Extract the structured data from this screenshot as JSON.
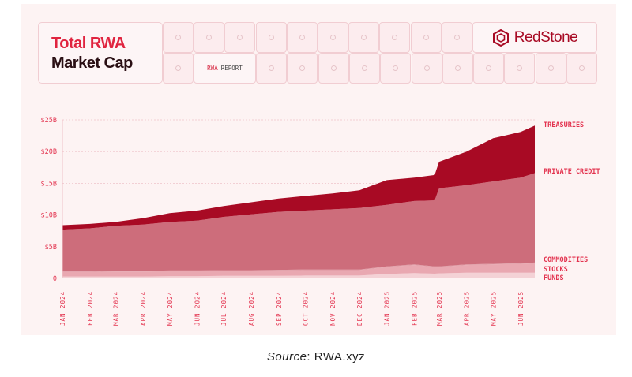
{
  "header": {
    "title_line1": "Total RWA",
    "title_line2": "Market Cap",
    "report_part1": "RWA",
    "report_part2": "REPORT",
    "brand": "RedStone"
  },
  "source": {
    "label": "Source",
    "value": ": RWA.xyz"
  },
  "colors": {
    "treasuries": "#a80a24",
    "private_credit": "#cd6d7b",
    "commodities": "#de98a2",
    "stocks": "#e9a8b1",
    "funds": "#f4d2d6",
    "labels": "#e3334f"
  },
  "chart_data": {
    "type": "area",
    "stacked": true,
    "title": "Total RWA Market Cap",
    "xlabel": "",
    "ylabel": "",
    "ylim": [
      0,
      25
    ],
    "y_ticks": [
      "0",
      "$5B",
      "$10B",
      "$15B",
      "$20B",
      "$25B"
    ],
    "y_tick_values": [
      0,
      5,
      10,
      15,
      20,
      25
    ],
    "grid": true,
    "legend": "right, aligned to series ends",
    "x_ticks": [
      "JAN 2024",
      "FEB 2024",
      "MAR 2024",
      "APR 2024",
      "MAY 2024",
      "JUN 2024",
      "JUL 2024",
      "AUG 2024",
      "SEP 2024",
      "OCT 2024",
      "NOV 2024",
      "DEC 2024",
      "JAN 2025",
      "FEB 2025",
      "MAR 2025",
      "APR 2025",
      "MAY 2025",
      "JUN 2025"
    ],
    "x_tick_dates": [
      "2024-01-01",
      "2024-02-01",
      "2024-03-01",
      "2024-04-01",
      "2024-05-01",
      "2024-06-01",
      "2024-07-01",
      "2024-08-01",
      "2024-09-01",
      "2024-10-01",
      "2024-11-01",
      "2024-12-01",
      "2025-01-01",
      "2025-02-01",
      "2025-03-01",
      "2025-04-01",
      "2025-05-01",
      "2025-06-01"
    ],
    "x": [
      "2024-01-01",
      "2024-02-01",
      "2024-03-01",
      "2024-04-01",
      "2024-05-01",
      "2024-06-01",
      "2024-07-01",
      "2024-08-01",
      "2024-09-01",
      "2024-10-01",
      "2024-11-01",
      "2024-12-01",
      "2025-01-01",
      "2025-02-01",
      "2025-02-24",
      "2025-03-01",
      "2025-04-01",
      "2025-05-01",
      "2025-06-01",
      "2025-06-17"
    ],
    "unit": "USD billions",
    "series": [
      {
        "name": "FUNDS",
        "key": "funds",
        "values": [
          0.3,
          0.3,
          0.3,
          0.3,
          0.35,
          0.35,
          0.4,
          0.4,
          0.4,
          0.45,
          0.45,
          0.45,
          0.7,
          0.85,
          0.75,
          0.8,
          0.9,
          0.9,
          0.9,
          0.9
        ]
      },
      {
        "name": "STOCKS",
        "key": "stocks",
        "values": [
          0.75,
          0.75,
          0.8,
          0.8,
          0.8,
          0.8,
          0.8,
          0.8,
          0.85,
          0.85,
          0.85,
          0.85,
          1.1,
          1.25,
          1.05,
          1.0,
          1.2,
          1.3,
          1.4,
          1.5
        ]
      },
      {
        "name": "COMMODITIES",
        "key": "commodities",
        "values": [
          0.1,
          0.1,
          0.1,
          0.1,
          0.1,
          0.1,
          0.1,
          0.1,
          0.1,
          0.1,
          0.1,
          0.1,
          0.1,
          0.1,
          0.1,
          0.1,
          0.1,
          0.1,
          0.1,
          0.1
        ]
      },
      {
        "name": "PRIVATE CREDIT",
        "key": "private_credit",
        "values": [
          6.55,
          6.75,
          7.1,
          7.3,
          7.65,
          7.85,
          8.4,
          8.8,
          9.15,
          9.3,
          9.5,
          9.7,
          9.7,
          10.0,
          10.4,
          12.3,
          12.5,
          13.0,
          13.5,
          14.1
        ]
      },
      {
        "name": "TREASURIES",
        "key": "treasuries",
        "values": [
          0.7,
          0.7,
          0.6,
          1.0,
          1.4,
          1.6,
          1.7,
          1.9,
          2.1,
          2.3,
          2.5,
          2.8,
          3.9,
          3.7,
          4.0,
          4.2,
          5.3,
          6.8,
          7.2,
          7.5
        ]
      }
    ]
  }
}
